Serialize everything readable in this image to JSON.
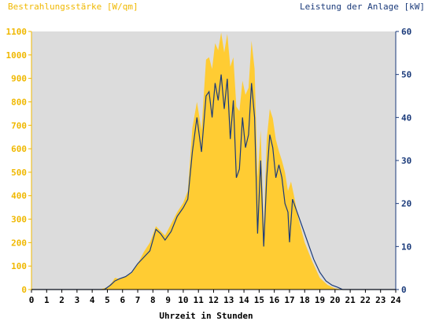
{
  "chart_data": {
    "type": "area",
    "title_left": "Bestrahlungsstärke [W/qm]",
    "title_right": "Leistung der Anlage [kW]",
    "xlabel": "Uhrzeit in Stunden",
    "x_ticks": [
      "0",
      "1",
      "2",
      "3",
      "4",
      "5",
      "6",
      "7",
      "8",
      "9",
      "10",
      "11",
      "12",
      "13",
      "14",
      "15",
      "16",
      "17",
      "18",
      "19",
      "20",
      "21",
      "22",
      "23",
      "24"
    ],
    "y_left_ticks": [
      "0",
      "100",
      "200",
      "300",
      "400",
      "500",
      "600",
      "700",
      "800",
      "900",
      "1000",
      "1100"
    ],
    "y_right_ticks": [
      "0",
      "10",
      "20",
      "30",
      "40",
      "50",
      "60"
    ],
    "xlim": [
      0,
      24
    ],
    "ylim_left": [
      0,
      1100
    ],
    "ylim_right": [
      0,
      60
    ],
    "grid": false,
    "colors": {
      "plot_background": "#dcdcdc",
      "irradiance_fill": "#ffcc33",
      "power_line": "#1a3a7a",
      "left_axis_text": "#f0b800",
      "right_axis_text": "#1a3a7a",
      "x_axis_text": "#000000"
    },
    "series": [
      {
        "axis": "left",
        "x": [
          0,
          4.5,
          5.0,
          5.3,
          5.5,
          5.8,
          6.2,
          6.6,
          7.0,
          7.4,
          7.8,
          8.2,
          8.5,
          8.8,
          9.2,
          9.6,
          10.0,
          10.3,
          10.6,
          10.9,
          11.2,
          11.5,
          11.7,
          11.9,
          12.1,
          12.3,
          12.5,
          12.7,
          12.9,
          13.1,
          13.3,
          13.5,
          13.7,
          13.9,
          14.1,
          14.3,
          14.5,
          14.7,
          14.9,
          15.1,
          15.3,
          15.5,
          15.7,
          15.9,
          16.1,
          16.3,
          16.5,
          16.7,
          16.9,
          17.1,
          17.3,
          17.6,
          18.0,
          18.5,
          19.0,
          19.5,
          20.0,
          20.5,
          21.0,
          24
        ],
        "values": [
          0,
          0,
          10,
          30,
          50,
          45,
          55,
          70,
          110,
          160,
          200,
          270,
          250,
          230,
          280,
          330,
          370,
          420,
          690,
          800,
          680,
          980,
          990,
          940,
          1050,
          1020,
          1095,
          1010,
          1090,
          950,
          990,
          780,
          760,
          890,
          830,
          860,
          1060,
          940,
          480,
          680,
          260,
          640,
          770,
          730,
          640,
          590,
          550,
          500,
          420,
          460,
          400,
          300,
          200,
          120,
          50,
          20,
          5,
          0,
          0,
          0
        ]
      },
      {
        "axis": "right",
        "x": [
          0,
          4.8,
          5.2,
          5.5,
          5.8,
          6.2,
          6.6,
          7.0,
          7.4,
          7.8,
          8.2,
          8.5,
          8.8,
          9.2,
          9.6,
          10.0,
          10.3,
          10.6,
          10.9,
          11.2,
          11.5,
          11.7,
          11.9,
          12.1,
          12.3,
          12.5,
          12.7,
          12.9,
          13.1,
          13.3,
          13.5,
          13.7,
          13.9,
          14.1,
          14.3,
          14.5,
          14.7,
          14.9,
          15.1,
          15.3,
          15.5,
          15.7,
          15.9,
          16.1,
          16.3,
          16.5,
          16.7,
          16.9,
          17.0,
          17.2,
          17.5,
          17.8,
          18.2,
          18.6,
          19.0,
          19.4,
          19.8,
          20.2,
          20.5,
          21.0,
          24
        ],
        "values": [
          0,
          0,
          1,
          2,
          2.5,
          3,
          4,
          6,
          7.5,
          9,
          14,
          13,
          11.5,
          13.5,
          17,
          19,
          21,
          32,
          40,
          32,
          45,
          46,
          40,
          48,
          44,
          50,
          42,
          49,
          35,
          44,
          26,
          28,
          40,
          33,
          36,
          48,
          40,
          13,
          30,
          10,
          26,
          36,
          33,
          26,
          29,
          26,
          20,
          18,
          11,
          21,
          18,
          15,
          11,
          7,
          4,
          2,
          1,
          0.5,
          0,
          0,
          0
        ]
      }
    ]
  }
}
